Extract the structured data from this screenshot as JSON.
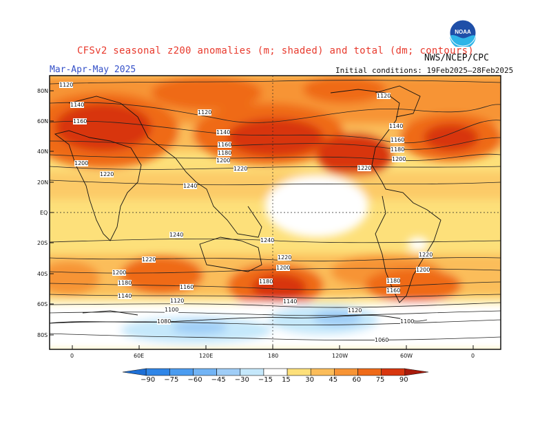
{
  "header": {
    "title": "CFSv2 seasonal z200 anomalies (m; shaded) and total (dm; contours)",
    "agency": "NWS/NCEP/CPC",
    "period": "Mar-Apr-May 2025",
    "initial_conditions": "Initial conditions: 19Feb2025–28Feb2025",
    "logo_text": "NOAA"
  },
  "axes": {
    "lat_labels": [
      "80N",
      "60N",
      "40N",
      "20N",
      "EQ",
      "20S",
      "40S",
      "60S",
      "80S"
    ],
    "lon_labels": [
      "0",
      "60E",
      "120E",
      "180",
      "120W",
      "60W",
      "0"
    ]
  },
  "contour_labels": [
    "1120",
    "1140",
    "1160",
    "1180",
    "1200",
    "1220",
    "1240",
    "1100",
    "1080",
    "1060"
  ],
  "colorbar": {
    "ticks": [
      "−90",
      "−75",
      "−60",
      "−45",
      "−30",
      "−15",
      "15",
      "30",
      "45",
      "60",
      "75",
      "90"
    ],
    "colors": [
      "#1d6fd6",
      "#2f86e8",
      "#4b9cf0",
      "#72b4f5",
      "#9fcdf7",
      "#c5e8fb",
      "#ffffff",
      "#fde07a",
      "#fbbd5a",
      "#f79435",
      "#ef6a18",
      "#d8360e",
      "#a81a0b"
    ]
  },
  "palette": {
    "pos1": "#fde07a",
    "pos2": "#fbbd5a",
    "pos3": "#f79435",
    "pos4": "#ef6a18",
    "pos5": "#d8360e",
    "pos6": "#a81a0b",
    "neg1": "#c5e8fb",
    "neg2": "#9fcdf7",
    "neg3": "#72b4f5"
  }
}
